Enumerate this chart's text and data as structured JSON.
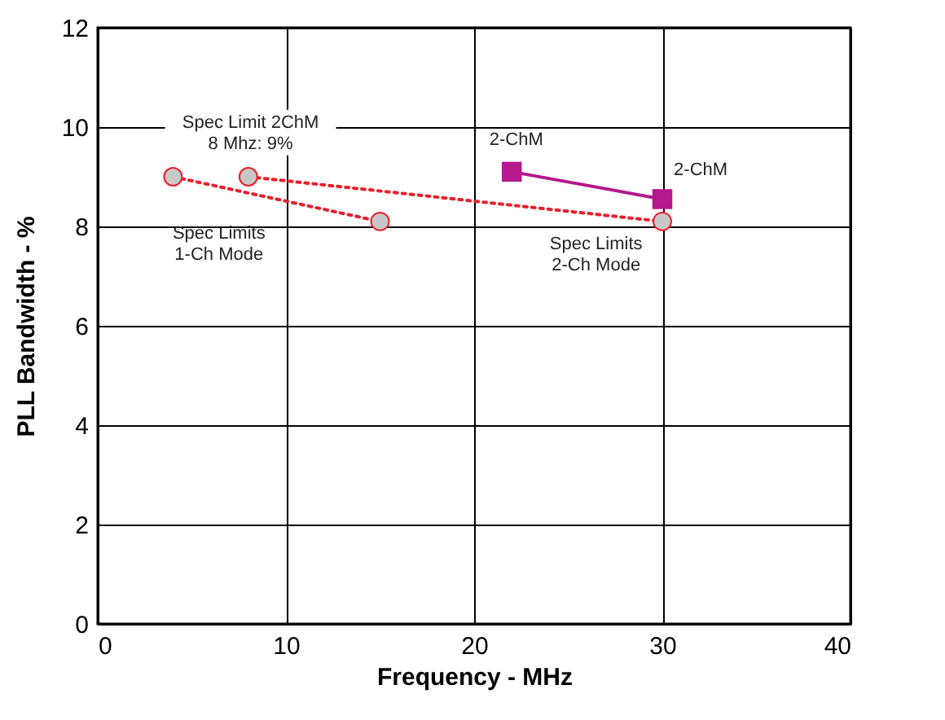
{
  "chart_data": {
    "type": "line",
    "xlabel": "Frequency - MHz",
    "ylabel": "PLL Bandwidth - %",
    "xlim": [
      0,
      40
    ],
    "xticks": [
      0,
      10,
      20,
      30,
      40
    ],
    "ylim": [
      0,
      12
    ],
    "yticks": [
      0,
      2,
      4,
      6,
      8,
      10,
      12
    ],
    "grid": true,
    "series": [
      {
        "x": [
          4,
          15
        ],
        "values": [
          9.0,
          8.1
        ],
        "color": "#e8202a",
        "line_style": "dotted",
        "marker": "circle"
      },
      {
        "x": [
          8,
          30
        ],
        "values": [
          9.0,
          8.1
        ],
        "color": "#e8202a",
        "line_style": "dotted",
        "marker": "circle"
      },
      {
        "x": [
          22,
          30
        ],
        "values": [
          9.1,
          8.55
        ],
        "color": "#b5178d",
        "line_style": "solid",
        "marker": "square"
      }
    ],
    "annotations": [
      "Spec Limit 2ChM\n8 Mhz: 9%",
      "2-ChM",
      "2-ChM",
      "Spec Limits\n1-Ch Mode",
      "Spec Limits\n2-Ch Mode"
    ]
  }
}
